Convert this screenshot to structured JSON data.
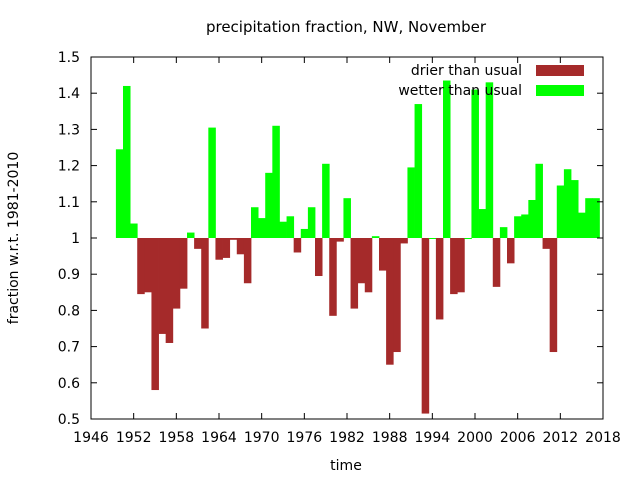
{
  "chart_data": {
    "type": "bar",
    "title": "precipitation fraction, NW, November",
    "xlabel": "time",
    "ylabel": "fraction w.r.t. 1981-2010",
    "xlim": [
      1946,
      2018
    ],
    "ylim": [
      0.5,
      1.5
    ],
    "baseline": 1.0,
    "grid": false,
    "legend_position": "top-right",
    "x_ticks": [
      1946,
      1952,
      1958,
      1964,
      1970,
      1976,
      1982,
      1988,
      1994,
      2000,
      2006,
      2012,
      2018
    ],
    "y_ticks": [
      0.5,
      0.6,
      0.7,
      0.8,
      0.9,
      1.0,
      1.1,
      1.2,
      1.3,
      1.4,
      1.5
    ],
    "y_tick_labels": [
      "0.5",
      "0.6",
      "0.7",
      "0.8",
      "0.9",
      "1",
      "1.1",
      "1.2",
      "1.3",
      "1.4",
      "1.5"
    ],
    "series": [
      {
        "name": "drier than usual",
        "color": "#a52a2a",
        "condition": "value < 1"
      },
      {
        "name": "wetter than usual",
        "color": "#00ff00",
        "condition": "value >= 1"
      }
    ],
    "years": [
      1950,
      1951,
      1952,
      1953,
      1954,
      1955,
      1956,
      1957,
      1958,
      1959,
      1960,
      1961,
      1962,
      1963,
      1964,
      1965,
      1966,
      1967,
      1968,
      1969,
      1970,
      1971,
      1972,
      1973,
      1974,
      1975,
      1976,
      1977,
      1978,
      1979,
      1980,
      1981,
      1982,
      1983,
      1984,
      1985,
      1986,
      1987,
      1988,
      1989,
      1990,
      1991,
      1992,
      1993,
      1994,
      1995,
      1996,
      1997,
      1998,
      1999,
      2000,
      2001,
      2002,
      2003,
      2004,
      2005,
      2006,
      2007,
      2008,
      2009,
      2010,
      2011,
      2012,
      2013,
      2014,
      2015,
      2016,
      2017
    ],
    "values": [
      1.245,
      1.42,
      1.04,
      0.845,
      0.85,
      0.58,
      0.735,
      0.71,
      0.805,
      0.86,
      1.015,
      0.97,
      0.75,
      1.305,
      0.94,
      0.945,
      0.995,
      0.955,
      0.875,
      1.085,
      1.055,
      1.18,
      1.31,
      1.045,
      1.06,
      0.96,
      1.025,
      1.085,
      0.895,
      1.205,
      0.785,
      0.99,
      1.11,
      0.805,
      0.875,
      0.85,
      1.005,
      0.91,
      0.65,
      0.685,
      0.985,
      1.195,
      1.37,
      0.515,
      1.0,
      0.775,
      1.435,
      0.845,
      0.85,
      1.0,
      1.41,
      1.08,
      1.43,
      0.865,
      1.03,
      0.93,
      1.06,
      1.065,
      1.105,
      1.205,
      0.97,
      0.685,
      1.145,
      1.19,
      1.16,
      1.07,
      1.11,
      1.11
    ]
  }
}
